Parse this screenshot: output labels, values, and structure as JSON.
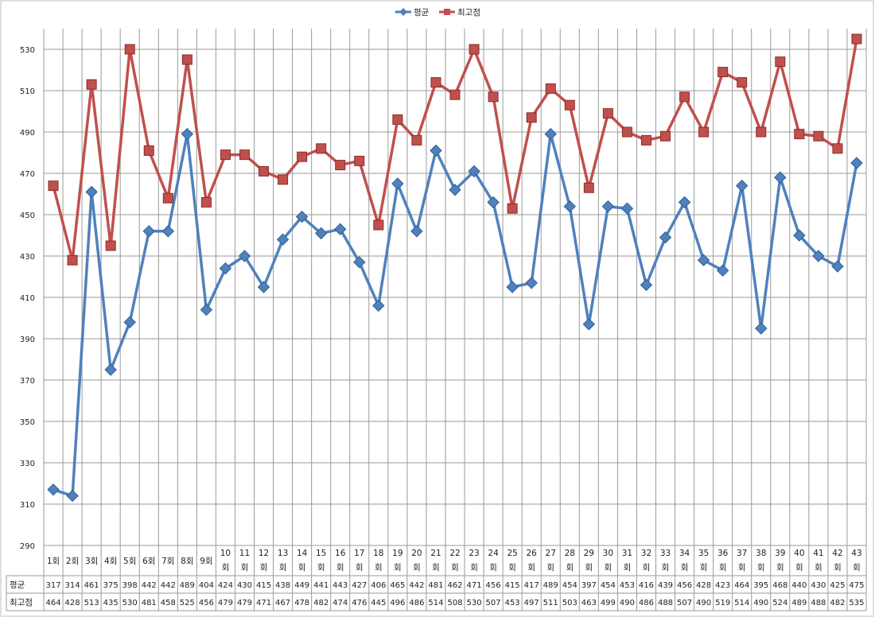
{
  "chart_data": {
    "type": "line",
    "title": "",
    "xlabel": "",
    "ylabel": "",
    "ylim": [
      290,
      540
    ],
    "yticks": [
      290,
      310,
      330,
      350,
      370,
      390,
      410,
      430,
      450,
      470,
      490,
      510,
      530
    ],
    "grid": true,
    "legend_position": "top-center",
    "categories": [
      "1회",
      "2회",
      "3회",
      "4회",
      "5회",
      "6회",
      "7회",
      "8회",
      "9회",
      "10 회",
      "11 회",
      "12 회",
      "13 회",
      "14 회",
      "15 회",
      "16 회",
      "17 회",
      "18 회",
      "19 회",
      "20 회",
      "21 회",
      "22 회",
      "23 회",
      "24 회",
      "25 회",
      "26 회",
      "27 회",
      "28 회",
      "29 회",
      "30 회",
      "31 회",
      "32 회",
      "33 회",
      "34 회",
      "35 회",
      "36 회",
      "37 회",
      "38 회",
      "39 회",
      "40 회",
      "41 회",
      "42 회",
      "43 회"
    ],
    "series": [
      {
        "name": "평균",
        "color": "#4f81bd",
        "marker": "diamond",
        "values": [
          317,
          314,
          461,
          375,
          398,
          442,
          442,
          489,
          404,
          424,
          430,
          415,
          438,
          449,
          441,
          443,
          427,
          406,
          465,
          442,
          481,
          462,
          471,
          456,
          415,
          417,
          489,
          454,
          397,
          454,
          453,
          416,
          439,
          456,
          428,
          423,
          464,
          395,
          468,
          440,
          430,
          425,
          475
        ]
      },
      {
        "name": "최고점",
        "color": "#c0504d",
        "marker": "square",
        "values": [
          464,
          428,
          513,
          435,
          530,
          481,
          458,
          525,
          456,
          479,
          479,
          471,
          467,
          478,
          482,
          474,
          476,
          445,
          496,
          486,
          514,
          508,
          530,
          507,
          453,
          497,
          511,
          503,
          463,
          499,
          490,
          486,
          488,
          507,
          490,
          519,
          514,
          490,
          524,
          489,
          488,
          482,
          535
        ]
      }
    ],
    "data_table": true
  }
}
